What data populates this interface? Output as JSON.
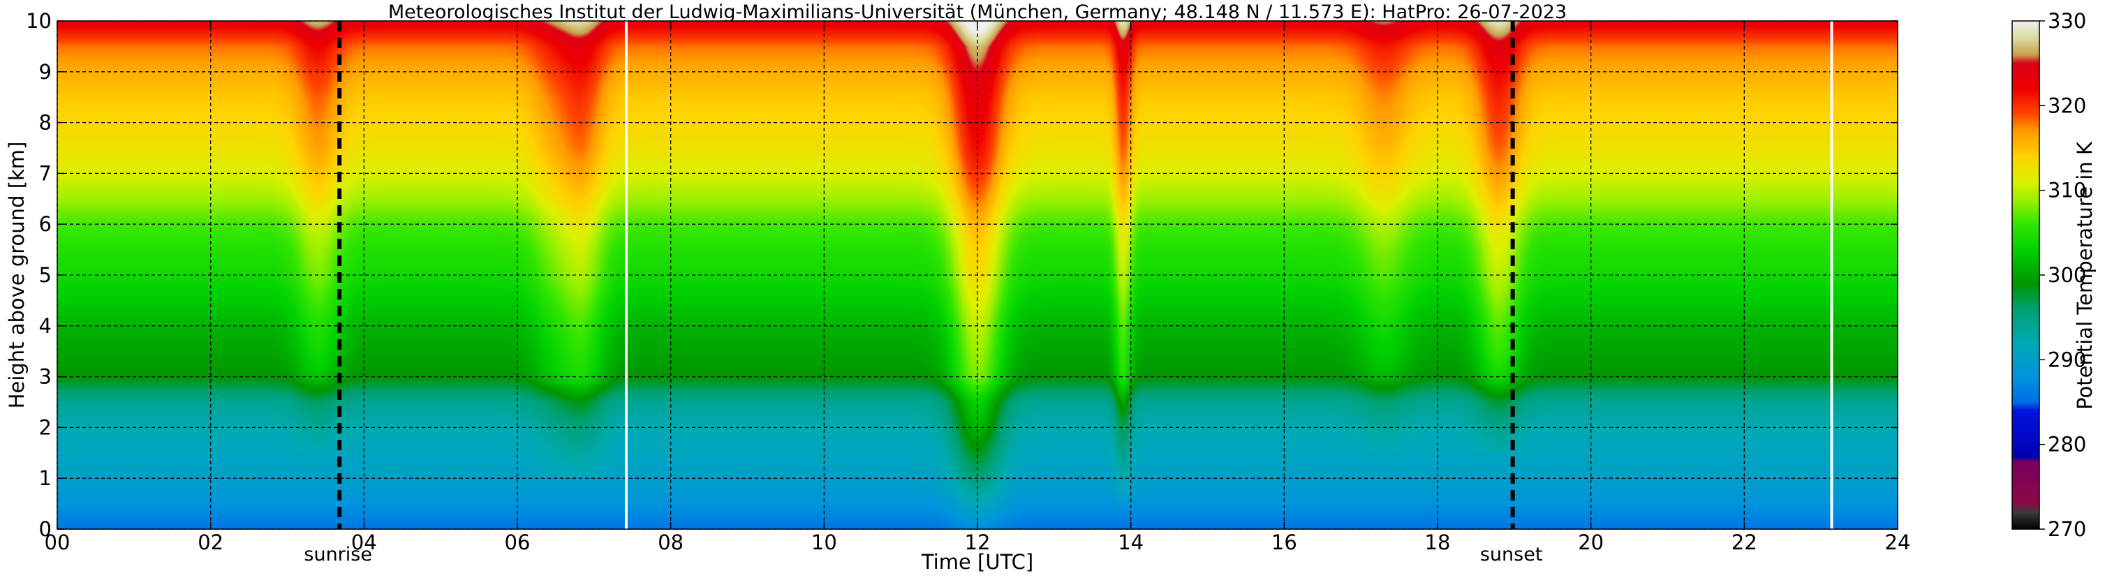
{
  "chart_data": {
    "type": "heatmap",
    "title": "Meteorologisches Institut der Ludwig-Maximilians-Universität (München, Germany; 48.148 N / 11.573 E):    HatPro: 26-07-2023",
    "xlabel": "Time [UTC]",
    "ylabel": "Height above ground [km]",
    "xlim": [
      0,
      24
    ],
    "ylim": [
      0,
      10
    ],
    "x_ticks": [
      0,
      2,
      4,
      6,
      8,
      10,
      12,
      14,
      16,
      18,
      20,
      22,
      24
    ],
    "x_tick_labels": [
      "00",
      "02",
      "04",
      "06",
      "08",
      "10",
      "12",
      "14",
      "16",
      "18",
      "20",
      "22",
      "24"
    ],
    "y_ticks": [
      0,
      1,
      2,
      3,
      4,
      5,
      6,
      7,
      8,
      9,
      10
    ],
    "y_tick_labels": [
      "0",
      "1",
      "2",
      "3",
      "4",
      "5",
      "6",
      "7",
      "8",
      "9",
      "10"
    ],
    "grid": true,
    "colorbar": {
      "label": "Potential Temperature in K",
      "min": 270,
      "max": 330,
      "ticks": [
        270,
        280,
        290,
        300,
        310,
        320,
        330
      ],
      "tick_labels": [
        "270",
        "280",
        "290",
        "300",
        "310",
        "320",
        "330"
      ],
      "color_stops": [
        {
          "value": 270,
          "color": "#000000"
        },
        {
          "value": 272,
          "color": "#3c3c3c"
        },
        {
          "value": 273,
          "color": "#8c0a46"
        },
        {
          "value": 278,
          "color": "#780060"
        },
        {
          "value": 278.5,
          "color": "#0000b4"
        },
        {
          "value": 284,
          "color": "#0014dc"
        },
        {
          "value": 285,
          "color": "#0070e6"
        },
        {
          "value": 288,
          "color": "#0094dc"
        },
        {
          "value": 292,
          "color": "#00aab4"
        },
        {
          "value": 296,
          "color": "#00a070"
        },
        {
          "value": 299,
          "color": "#009600"
        },
        {
          "value": 303,
          "color": "#00d200"
        },
        {
          "value": 306,
          "color": "#32e600"
        },
        {
          "value": 309,
          "color": "#a0f000"
        },
        {
          "value": 311,
          "color": "#dcf000"
        },
        {
          "value": 314,
          "color": "#ffd200"
        },
        {
          "value": 317,
          "color": "#ff9b00"
        },
        {
          "value": 319,
          "color": "#ff4600"
        },
        {
          "value": 322,
          "color": "#ee0000"
        },
        {
          "value": 325,
          "color": "#dc0014"
        },
        {
          "value": 326,
          "color": "#c8a050"
        },
        {
          "value": 328,
          "color": "#dcdca0"
        },
        {
          "value": 330,
          "color": "#f0f0f0"
        }
      ]
    },
    "base_profile_km_K": [
      [
        0,
        285.5
      ],
      [
        0.5,
        288
      ],
      [
        1,
        290
      ],
      [
        1.5,
        291
      ],
      [
        2,
        292
      ],
      [
        2.5,
        294
      ],
      [
        2.8,
        297
      ],
      [
        3,
        299
      ],
      [
        3.5,
        300
      ],
      [
        4,
        301
      ],
      [
        4.5,
        302.5
      ],
      [
        5,
        304
      ],
      [
        5.5,
        305
      ],
      [
        6,
        306.5
      ],
      [
        6.5,
        309
      ],
      [
        7,
        311
      ],
      [
        7.5,
        312.5
      ],
      [
        8,
        313.5
      ],
      [
        8.5,
        314.5
      ],
      [
        9,
        316
      ],
      [
        9.5,
        318
      ],
      [
        9.8,
        321
      ],
      [
        10,
        323
      ]
    ],
    "disturbances": [
      {
        "center_h": 3.4,
        "width_h": 0.3,
        "amp_K": 4,
        "bottom_km": 1.5,
        "top_km": 10
      },
      {
        "center_h": 6.45,
        "width_h": 0.3,
        "amp_K": 2.5,
        "bottom_km": 1,
        "top_km": 10
      },
      {
        "center_h": 6.85,
        "width_h": 0.3,
        "amp_K": 5,
        "bottom_km": 1,
        "top_km": 10
      },
      {
        "center_h": 12.0,
        "width_h": 0.35,
        "amp_K": 9,
        "bottom_km": 0,
        "top_km": 10
      },
      {
        "center_h": 13.9,
        "width_h": 0.12,
        "amp_K": 6,
        "bottom_km": 0.5,
        "top_km": 10
      },
      {
        "center_h": 17.3,
        "width_h": 0.35,
        "amp_K": 3,
        "bottom_km": 1.5,
        "top_km": 10
      },
      {
        "center_h": 18.8,
        "width_h": 0.3,
        "amp_K": 6,
        "bottom_km": 1.5,
        "top_km": 10
      }
    ],
    "data_gaps_h": [
      7.42,
      23.14
    ],
    "events": [
      {
        "label": "sunrise",
        "time_h": 3.68
      },
      {
        "label": "sunset",
        "time_h": 18.98
      }
    ]
  }
}
